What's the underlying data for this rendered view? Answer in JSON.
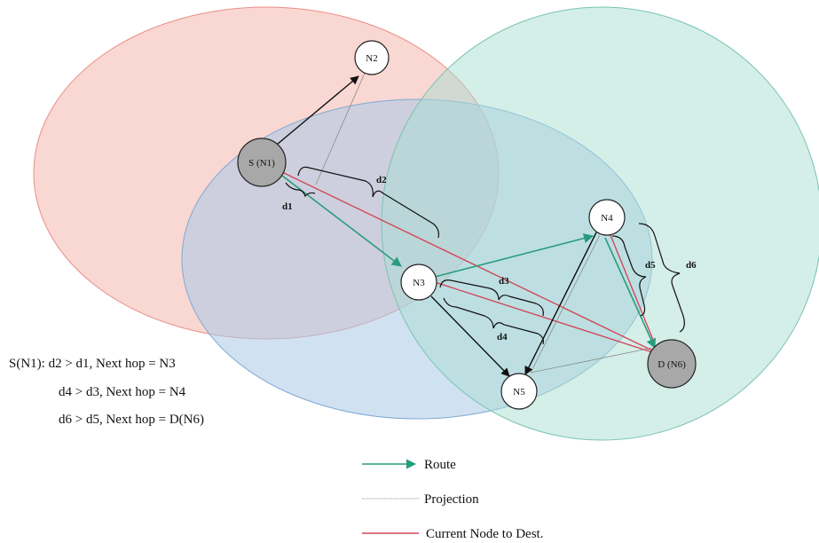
{
  "nodes": {
    "n1": "S (N1)",
    "n2": "N2",
    "n3": "N3",
    "n4": "N4",
    "n5": "N5",
    "n6": "D (N6)"
  },
  "distances": {
    "d1": "d1",
    "d2": "d2",
    "d3": "d3",
    "d4": "d4",
    "d5": "d5",
    "d6": "d6"
  },
  "rules": [
    "S(N1): d2 > d1, Next hop = N3",
    "d4 > d3, Next hop = N4",
    "d6 > d5, Next hop = D(N6)"
  ],
  "legend": {
    "route": "Route",
    "projection": "Projection",
    "current_to_dest": "Current Node to Dest."
  },
  "colors": {
    "route": "#2a9b7c",
    "projection": "#888888",
    "current_to_dest": "#d0495a",
    "range_n1": "#f4b6ad",
    "range_n3": "#a9c9e8",
    "range_n4": "#a9ddd2",
    "endpoint_fill": "#a8a8a8"
  }
}
